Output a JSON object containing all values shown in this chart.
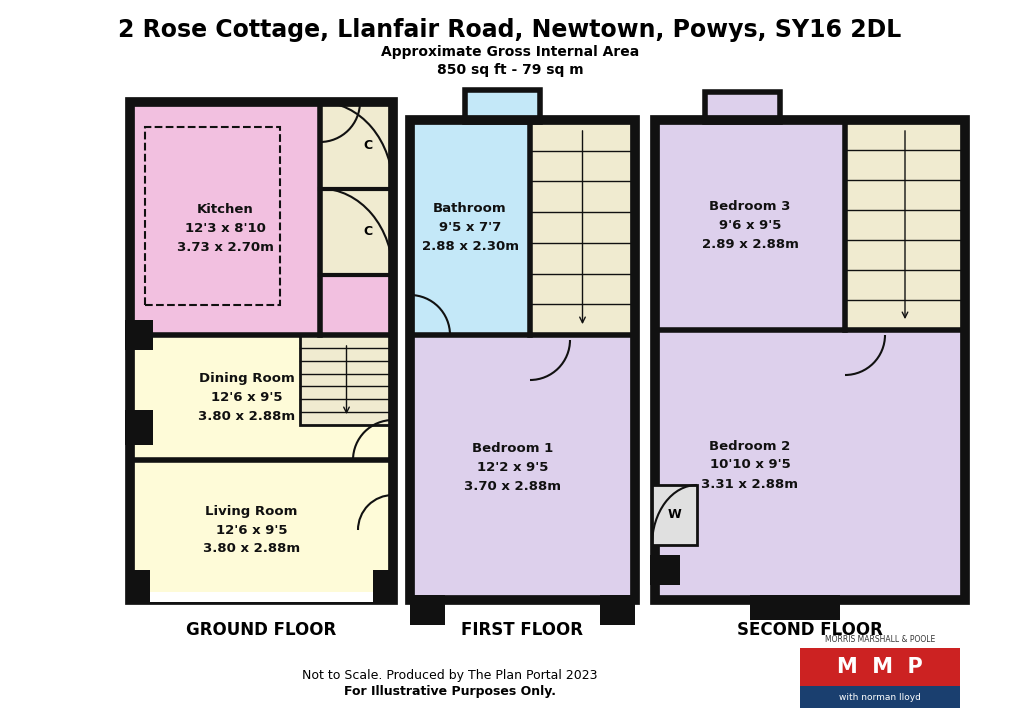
{
  "title": "2 Rose Cottage, Llanfair Road, Newtown, Powys, SY16 2DL",
  "subtitle1": "Approximate Gross Internal Area",
  "subtitle2": "850 sq ft - 79 sq m",
  "footer1": "Not to Scale. Produced by The Plan Portal 2023",
  "footer2": "For Illustrative Purposes Only.",
  "floor_labels": [
    "GROUND FLOOR",
    "FIRST FLOOR",
    "SECOND FLOOR"
  ],
  "bg_color": "#FFFFFF",
  "wall_color": "#111111",
  "color_kitchen": "#F2C0E0",
  "color_living": "#FEFBD8",
  "color_bathroom": "#C4E8F8",
  "color_bedroom": "#DDD0EC",
  "color_stairs": "#F0EBD0",
  "color_cupboard": "#F0EBD0"
}
